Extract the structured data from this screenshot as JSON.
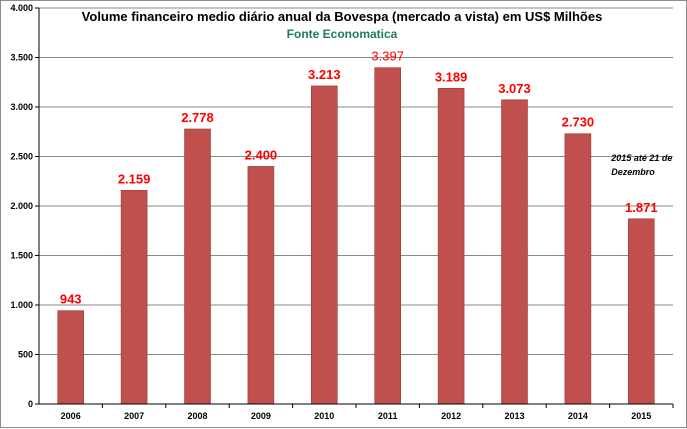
{
  "colors": {
    "bar": "#c0504d",
    "bar_edge": "#9b3b38",
    "grid": "#888888",
    "label": "#ff0000",
    "subtitle": "#1f7a60"
  },
  "chart_data": {
    "type": "bar",
    "title": "Volume financeiro medio diário anual da Bovespa (mercado a vista) em US$ Milhões",
    "subtitle": "Fonte Economatica",
    "categories": [
      "2006",
      "2007",
      "2008",
      "2009",
      "2010",
      "2011",
      "2012",
      "2013",
      "2014",
      "2015"
    ],
    "values": [
      943,
      2159,
      2778,
      2400,
      3213,
      3397,
      3189,
      3073,
      2730,
      1871
    ],
    "value_labels": [
      "943",
      "2.159",
      "2.778",
      "2.400",
      "3.213",
      "3.397",
      "3.189",
      "3.073",
      "2.730",
      "1.871"
    ],
    "ylim": [
      0,
      4000
    ],
    "yticks": [
      0,
      500,
      1000,
      1500,
      2000,
      2500,
      3000,
      3500,
      4000
    ],
    "ytick_labels": [
      "0",
      "500",
      "1.000",
      "1.500",
      "2.000",
      "2.500",
      "3.000",
      "3.500",
      "4.000"
    ],
    "xlabel": "",
    "ylabel": "",
    "grid": true,
    "annotation": {
      "category": "2015",
      "lines": [
        "2015 até 21 de",
        "Dezembro"
      ]
    }
  }
}
